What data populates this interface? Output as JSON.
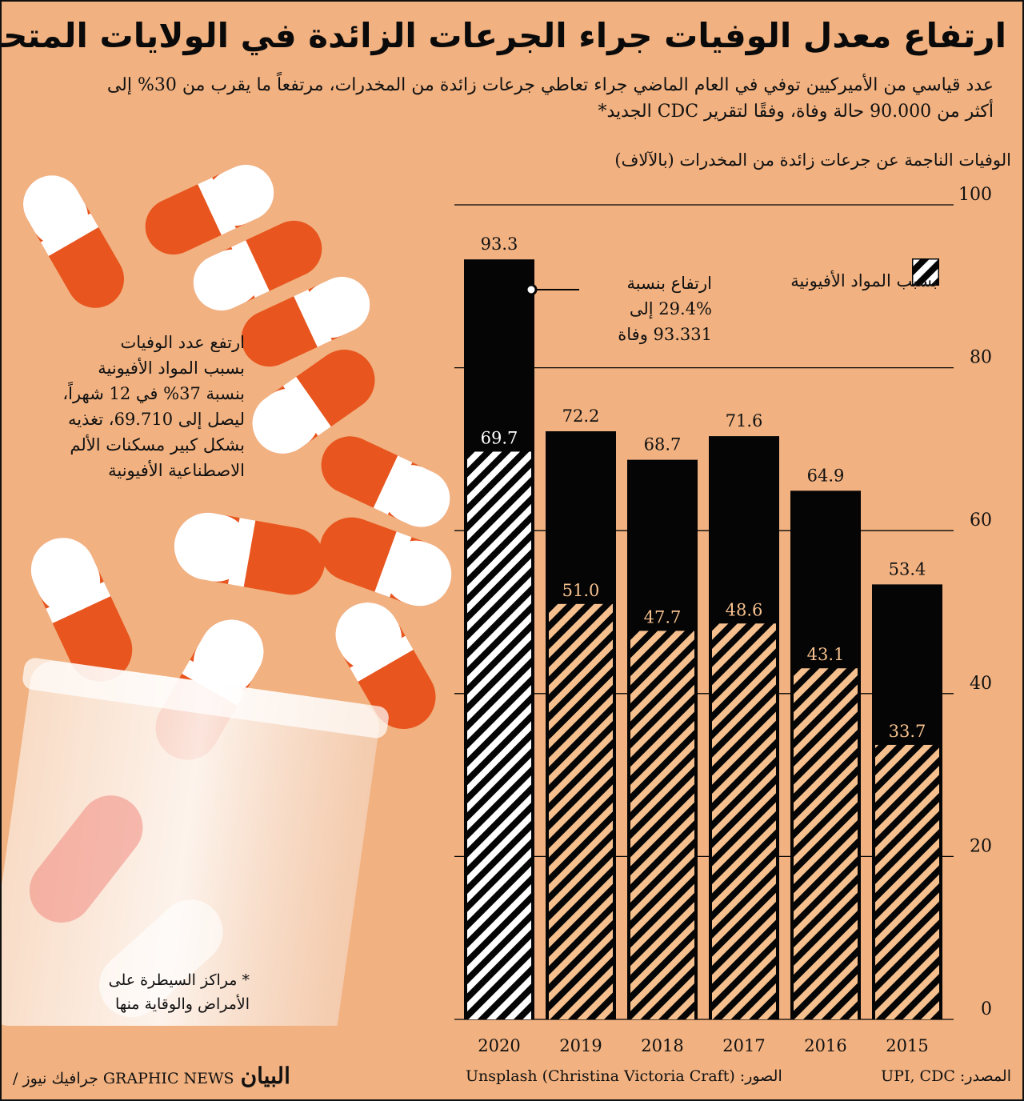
{
  "title": "ارتفاع معدل الوفيات جراء الجرعات الزائدة في الولايات المتحدة",
  "subtitle_line1": "عدد قياسي من الأميركيين توفي  في العام الماضي جراء تعاطي جرعات زائدة من المخدرات،  مرتفعاً ما يقرب من 30% إلى",
  "subtitle_line2": "أكثر من 90.000 حالة وفاة،  وفقًا لتقرير CDC الجديد*",
  "legend_label": "بسبب المواد الأفيونية",
  "annotation": "ارتفاع بنسبة\n29.4% إلى\n93.331 وفاة",
  "side_note": "ارتفع عدد الوفيات\nبسبب المواد الأفيونية\nبنسبة 37% في 12 شهراً،\nليصل إلى 69.710،  تغذيه\nبشكل كبير مسكنات الألم\nالاصطناعية الأفيونية",
  "footnote": "* مراكز السيطرة على\nالأمراض والوقاية منها",
  "source": "المصدر: UPI, CDC",
  "photo_credit": "الصور: Unsplash (Christina Victoria Craft)",
  "brand_text": "GRAPHIC NEWS جرافيك نيوز /",
  "brand_logo": "البيان",
  "colors": {
    "background": "#f1b180",
    "bar": "#050505",
    "hatch_light": "#f6c08e",
    "white": "#ffffff",
    "pill_orange": "#e8551e"
  },
  "chart_data": {
    "type": "bar",
    "ylabel": "الوفيات الناجمة عن جرعات زائدة من المخدرات (بالآلاف)",
    "categories": [
      "2020",
      "2019",
      "2018",
      "2017",
      "2016",
      "2015"
    ],
    "series": [
      {
        "name": "",
        "values": [
          93.3,
          72.2,
          68.7,
          71.6,
          64.9,
          53.4
        ]
      },
      {
        "name": "بسبب المواد الأفيونية",
        "values": [
          69.7,
          51.0,
          47.7,
          48.6,
          43.1,
          33.7
        ]
      }
    ],
    "total_labels": [
      "93.3",
      "72.2",
      "68.7",
      "71.6",
      "64.9",
      "53.4"
    ],
    "opioid_labels": [
      "69.7",
      "51.0",
      "47.7",
      "48.6",
      "43.1",
      "33.7"
    ],
    "ylim": [
      0,
      100
    ],
    "yticks": [
      0,
      20,
      40,
      60,
      80,
      100
    ],
    "grid": true,
    "legend_position": "top-right",
    "y_axis_side": "right"
  }
}
